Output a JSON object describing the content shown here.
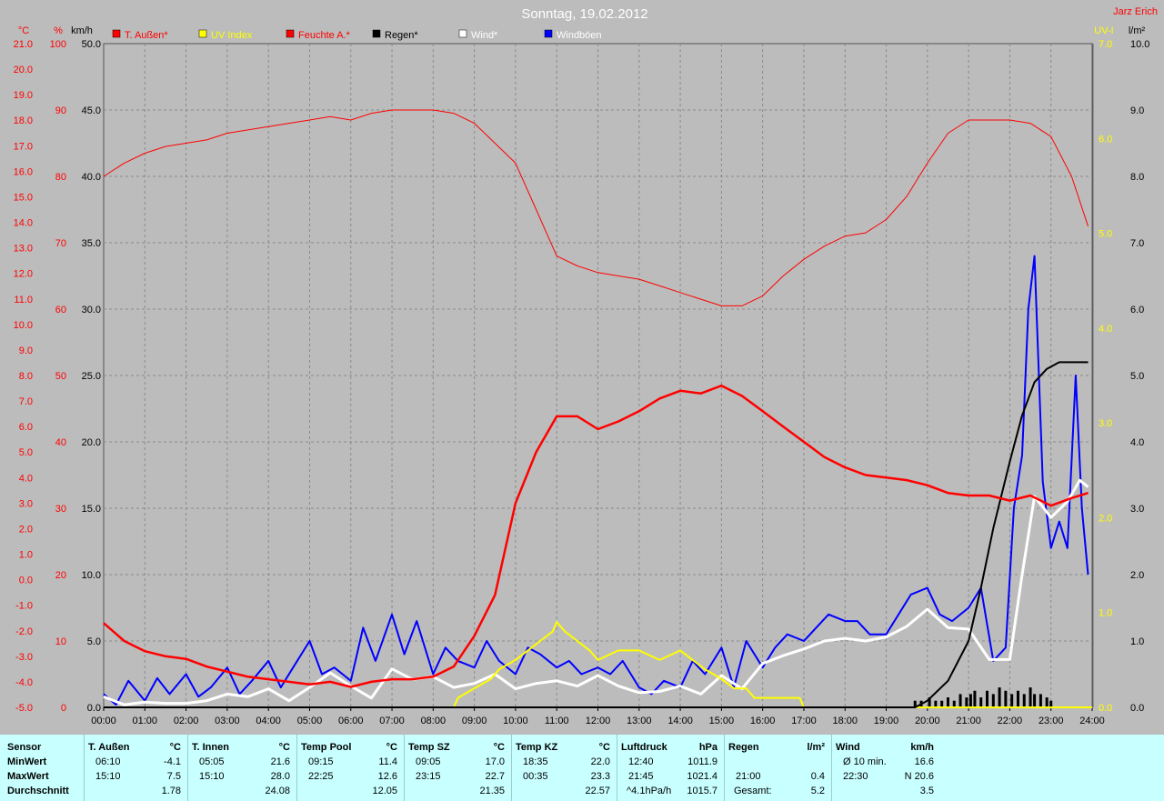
{
  "title": "Sonntag, 19.02.2012",
  "author": "Jarz Erich",
  "colors": {
    "temp": "#ff0000",
    "uv": "#ffff00",
    "humidity": "#ff0000",
    "rain": "#000000",
    "wind": "#ffffff",
    "gust": "#0000ff",
    "grid": "#8a8a8a",
    "background": "#bcbcbc",
    "stats_bg": "#c8ffff"
  },
  "legend": [
    {
      "label": "T. Außen*",
      "color": "#ff0000",
      "label_color": "#ff0000"
    },
    {
      "label": "UV Index",
      "color": "#ffff00",
      "label_color": "#ffff00"
    },
    {
      "label": "Feuchte A.*",
      "color": "#ff0000",
      "label_color": "#ff0000"
    },
    {
      "label": "Regen*",
      "color": "#000000",
      "label_color": "#000000"
    },
    {
      "label": "Wind*",
      "color": "#ffffff",
      "label_color": "#ffffff"
    },
    {
      "label": "Windböen",
      "color": "#0000ff",
      "label_color": "#ffffff"
    }
  ],
  "chart_data": {
    "type": "line",
    "title": "Sonntag, 19.02.2012",
    "x_ticks": [
      "00:00",
      "01:00",
      "02:00",
      "03:00",
      "04:00",
      "05:00",
      "06:00",
      "07:00",
      "08:00",
      "09:00",
      "10:00",
      "11:00",
      "12:00",
      "13:00",
      "14:00",
      "15:00",
      "16:00",
      "17:00",
      "18:00",
      "19:00",
      "20:00",
      "21:00",
      "22:00",
      "23:00",
      "24:00"
    ],
    "x_range": [
      0,
      24
    ],
    "grid": true,
    "axes": {
      "temp": {
        "unit": "°C",
        "range": [
          -5,
          21
        ],
        "ticks": [
          "21.0",
          "20.0",
          "19.0",
          "18.0",
          "17.0",
          "16.0",
          "15.0",
          "14.0",
          "13.0",
          "12.0",
          "11.0",
          "10.0",
          "9.0",
          "8.0",
          "7.0",
          "6.0",
          "5.0",
          "4.0",
          "3.0",
          "2.0",
          "1.0",
          "0.0",
          "-1.0",
          "-2.0",
          "-3.0",
          "-4.0",
          "-5.0"
        ]
      },
      "humidity": {
        "unit": "%",
        "range": [
          0,
          100
        ],
        "ticks": [
          "100",
          "90",
          "80",
          "70",
          "60",
          "50",
          "40",
          "30",
          "20",
          "10",
          "0"
        ]
      },
      "wind": {
        "unit": "km/h",
        "range": [
          0,
          50
        ],
        "ticks": [
          "50.0",
          "45.0",
          "40.0",
          "35.0",
          "30.0",
          "25.0",
          "20.0",
          "15.0",
          "10.0",
          "5.0",
          "0.0"
        ]
      },
      "uv": {
        "unit": "UV-I",
        "range": [
          0,
          7
        ],
        "ticks": [
          "7.0",
          "6.0",
          "5.0",
          "4.0",
          "3.0",
          "2.0",
          "1.0",
          "0.0"
        ]
      },
      "rain": {
        "unit": "l/m²",
        "range": [
          0,
          10
        ],
        "ticks": [
          "10.0",
          "9.0",
          "8.0",
          "7.0",
          "6.0",
          "5.0",
          "4.0",
          "3.0",
          "2.0",
          "1.0",
          "0.0"
        ]
      }
    },
    "series": [
      {
        "name": "T. Außen*",
        "axis": "temp",
        "x": [
          0,
          0.5,
          1,
          1.5,
          2,
          2.5,
          3,
          3.5,
          4,
          4.5,
          5,
          5.5,
          6,
          6.5,
          7,
          7.5,
          8,
          8.5,
          9,
          9.5,
          10,
          10.5,
          11,
          11.5,
          12,
          12.5,
          13,
          13.5,
          14,
          14.5,
          15,
          15.5,
          16,
          16.5,
          17,
          17.5,
          18,
          18.5,
          19,
          19.5,
          20,
          20.5,
          21,
          21.5,
          22,
          22.5,
          23,
          23.5,
          23.9
        ],
        "values": [
          -1.7,
          -2.4,
          -2.8,
          -3.0,
          -3.1,
          -3.4,
          -3.6,
          -3.8,
          -3.9,
          -4.0,
          -4.1,
          -4.0,
          -4.2,
          -4.0,
          -3.9,
          -3.9,
          -3.8,
          -3.4,
          -2.2,
          -0.6,
          3.0,
          5.0,
          6.4,
          6.4,
          5.9,
          6.2,
          6.6,
          7.1,
          7.4,
          7.3,
          7.6,
          7.2,
          6.6,
          6.0,
          5.4,
          4.8,
          4.4,
          4.1,
          4.0,
          3.9,
          3.7,
          3.4,
          3.3,
          3.3,
          3.1,
          3.3,
          2.9,
          3.2,
          3.4
        ]
      },
      {
        "name": "Feuchte A.*",
        "axis": "humidity",
        "x": [
          0,
          0.5,
          1,
          1.5,
          2,
          2.5,
          3,
          3.5,
          4,
          4.5,
          5,
          5.5,
          6,
          6.5,
          7,
          7.5,
          8,
          8.5,
          9,
          9.5,
          10,
          10.5,
          11,
          11.5,
          12,
          12.5,
          13,
          13.5,
          14,
          14.5,
          15,
          15.5,
          16,
          16.5,
          17,
          17.5,
          18,
          18.5,
          19,
          19.5,
          20,
          20.5,
          21,
          21.5,
          22,
          22.5,
          23,
          23.5,
          23.9
        ],
        "values": [
          80,
          82,
          83.5,
          84.5,
          85,
          85.5,
          86.5,
          87,
          87.5,
          88,
          88.5,
          89,
          88.5,
          89.5,
          90,
          90,
          90,
          89.5,
          88,
          85,
          82,
          75,
          68,
          66.5,
          65.5,
          65,
          64.5,
          63.5,
          62.5,
          61.5,
          60.5,
          60.5,
          62,
          65,
          67.5,
          69.5,
          71,
          71.5,
          73.5,
          77,
          82,
          86.5,
          88.5,
          88.5,
          88.5,
          88,
          86,
          80,
          72.5
        ]
      },
      {
        "name": "Regen*",
        "axis": "rain",
        "x": [
          0,
          19.7,
          20,
          20.5,
          21,
          21.3,
          21.6,
          22,
          22.3,
          22.6,
          22.9,
          23.2,
          23.5,
          23.9
        ],
        "values": [
          0,
          0,
          0.1,
          0.4,
          1.0,
          1.8,
          2.7,
          3.7,
          4.4,
          4.9,
          5.1,
          5.2,
          5.2,
          5.2
        ]
      },
      {
        "name": "UV Index",
        "axis": "uv",
        "x": [
          0,
          8.5,
          8.6,
          9.0,
          9.4,
          9.6,
          10.0,
          10.3,
          10.6,
          10.9,
          11.0,
          11.2,
          11.5,
          11.8,
          12.0,
          12.5,
          13.0,
          13.5,
          14.0,
          14.3,
          14.6,
          15.0,
          15.3,
          15.6,
          15.8,
          16.0,
          16.5,
          16.9,
          17.0,
          24
        ],
        "values": [
          0,
          0,
          0.1,
          0.2,
          0.3,
          0.4,
          0.5,
          0.6,
          0.7,
          0.8,
          0.9,
          0.8,
          0.7,
          0.6,
          0.5,
          0.6,
          0.6,
          0.5,
          0.6,
          0.5,
          0.4,
          0.3,
          0.2,
          0.2,
          0.1,
          0.1,
          0.1,
          0.1,
          0,
          0
        ]
      },
      {
        "name": "Wind*",
        "axis": "wind",
        "x": [
          0,
          0.5,
          1,
          1.5,
          2,
          2.5,
          3,
          3.5,
          4,
          4.5,
          5,
          5.5,
          6,
          6.5,
          7,
          7.5,
          8,
          8.5,
          9,
          9.5,
          10,
          10.5,
          11,
          11.5,
          12,
          12.5,
          13,
          13.5,
          14,
          14.5,
          15,
          15.5,
          16,
          16.5,
          17,
          17.5,
          18,
          18.5,
          19,
          19.5,
          20,
          20.5,
          21,
          21.5,
          22,
          22.3,
          22.6,
          23,
          23.4,
          23.7,
          23.9
        ],
        "values": [
          0.8,
          0.2,
          0.4,
          0.3,
          0.3,
          0.5,
          1.0,
          0.8,
          1.4,
          0.5,
          1.5,
          2.6,
          1.6,
          0.7,
          2.9,
          2.1,
          2.3,
          1.5,
          1.8,
          2.5,
          1.4,
          1.8,
          2.0,
          1.6,
          2.4,
          1.6,
          1.1,
          1.2,
          1.6,
          1.0,
          2.4,
          1.4,
          3.3,
          3.9,
          4.4,
          5.0,
          5.2,
          5.0,
          5.3,
          6.1,
          7.4,
          6.0,
          5.9,
          3.6,
          3.6,
          10.0,
          15.9,
          14.3,
          15.5,
          17.1,
          16.6
        ]
      },
      {
        "name": "Windböen",
        "axis": "wind",
        "x": [
          0,
          0.3,
          0.6,
          1.0,
          1.3,
          1.6,
          2.0,
          2.3,
          2.6,
          3.0,
          3.3,
          3.6,
          4.0,
          4.3,
          4.6,
          5.0,
          5.3,
          5.6,
          6.0,
          6.3,
          6.6,
          7.0,
          7.3,
          7.6,
          8.0,
          8.3,
          8.6,
          9.0,
          9.3,
          9.6,
          10.0,
          10.3,
          10.6,
          11.0,
          11.3,
          11.6,
          12.0,
          12.3,
          12.6,
          13.0,
          13.3,
          13.6,
          14.0,
          14.3,
          14.6,
          15.0,
          15.3,
          15.6,
          16.0,
          16.3,
          16.6,
          17.0,
          17.3,
          17.6,
          18.0,
          18.3,
          18.6,
          19.0,
          19.3,
          19.6,
          20.0,
          20.3,
          20.6,
          21.0,
          21.3,
          21.6,
          21.9,
          22.1,
          22.3,
          22.45,
          22.6,
          22.8,
          23.0,
          23.2,
          23.4,
          23.6,
          23.75,
          23.9
        ],
        "values": [
          1.0,
          0.2,
          2.0,
          0.5,
          2.2,
          1.0,
          2.5,
          0.8,
          1.5,
          3.0,
          1.0,
          2.0,
          3.5,
          1.5,
          3.0,
          5.0,
          2.5,
          3.0,
          2.0,
          6.0,
          3.5,
          7.0,
          4.0,
          6.5,
          2.5,
          4.5,
          3.5,
          3.0,
          5.0,
          3.5,
          2.5,
          4.5,
          4.0,
          3.0,
          3.5,
          2.5,
          3.0,
          2.5,
          3.5,
          1.5,
          1.0,
          2.0,
          1.5,
          3.5,
          2.5,
          4.5,
          1.5,
          5.0,
          3.0,
          4.5,
          5.5,
          5.0,
          6.0,
          7.0,
          6.5,
          6.5,
          5.5,
          5.5,
          7.0,
          8.5,
          9.0,
          7.0,
          6.5,
          7.5,
          9.0,
          3.5,
          4.5,
          15.0,
          19.0,
          30.0,
          34.0,
          17.0,
          12.0,
          14.0,
          12.0,
          25.0,
          15.0,
          10.0
        ]
      }
    ],
    "rain_bars": {
      "x": [
        19.7,
        19.85,
        20.05,
        20.2,
        20.35,
        20.5,
        20.65,
        20.8,
        20.95,
        21.05,
        21.15,
        21.3,
        21.45,
        21.6,
        21.75,
        21.9,
        22.05,
        22.2,
        22.35,
        22.5,
        22.6,
        22.75,
        22.9,
        23.0
      ],
      "values": [
        0.1,
        0.1,
        0.15,
        0.1,
        0.1,
        0.15,
        0.1,
        0.2,
        0.15,
        0.2,
        0.25,
        0.15,
        0.25,
        0.2,
        0.3,
        0.25,
        0.2,
        0.25,
        0.2,
        0.3,
        0.2,
        0.2,
        0.15,
        0.1
      ]
    }
  },
  "stats": {
    "labels": {
      "sensor": "Sensor",
      "min": "MinWert",
      "max": "MaxWert",
      "avg": "Durchschnitt"
    },
    "columns": [
      {
        "name": "T. Außen",
        "unit": "°C",
        "min_time": "06:10",
        "min_val": "-4.1",
        "max_time": "15:10",
        "max_val": "7.5",
        "avg_time": "",
        "avg_val": "1.78"
      },
      {
        "name": "T. Innen",
        "unit": "°C",
        "min_time": "05:05",
        "min_val": "21.6",
        "max_time": "15:10",
        "max_val": "28.0",
        "avg_time": "",
        "avg_val": "24.08"
      },
      {
        "name": "Temp Pool",
        "unit": "°C",
        "min_time": "09:15",
        "min_val": "11.4",
        "max_time": "22:25",
        "max_val": "12.6",
        "avg_time": "",
        "avg_val": "12.05"
      },
      {
        "name": "Temp SZ",
        "unit": "°C",
        "min_time": "09:05",
        "min_val": "17.0",
        "max_time": "23:15",
        "max_val": "22.7",
        "avg_time": "",
        "avg_val": "21.35"
      },
      {
        "name": "Temp KZ",
        "unit": "°C",
        "min_time": "18:35",
        "min_val": "22.0",
        "max_time": "00:35",
        "max_val": "23.3",
        "avg_time": "",
        "avg_val": "22.57"
      },
      {
        "name": "Luftdruck",
        "unit": "hPa",
        "min_time": "12:40",
        "min_val": "1011.9",
        "max_time": "21:45",
        "max_val": "1021.4",
        "avg_time": "^4.1hPa/h",
        "avg_val": "1015.7"
      },
      {
        "name": "Regen",
        "unit": "l/m²",
        "min_time": "",
        "min_val": "",
        "max_time": "21:00",
        "max_val": "0.4",
        "avg_time": "Gesamt:",
        "avg_val": "5.2"
      },
      {
        "name": "Wind",
        "unit": "km/h",
        "min_time": "Ø 10 min.",
        "min_val": "16.6",
        "max_time": "22:30",
        "max_val": "N 20.6",
        "avg_time": "",
        "avg_val": "3.5"
      }
    ]
  }
}
